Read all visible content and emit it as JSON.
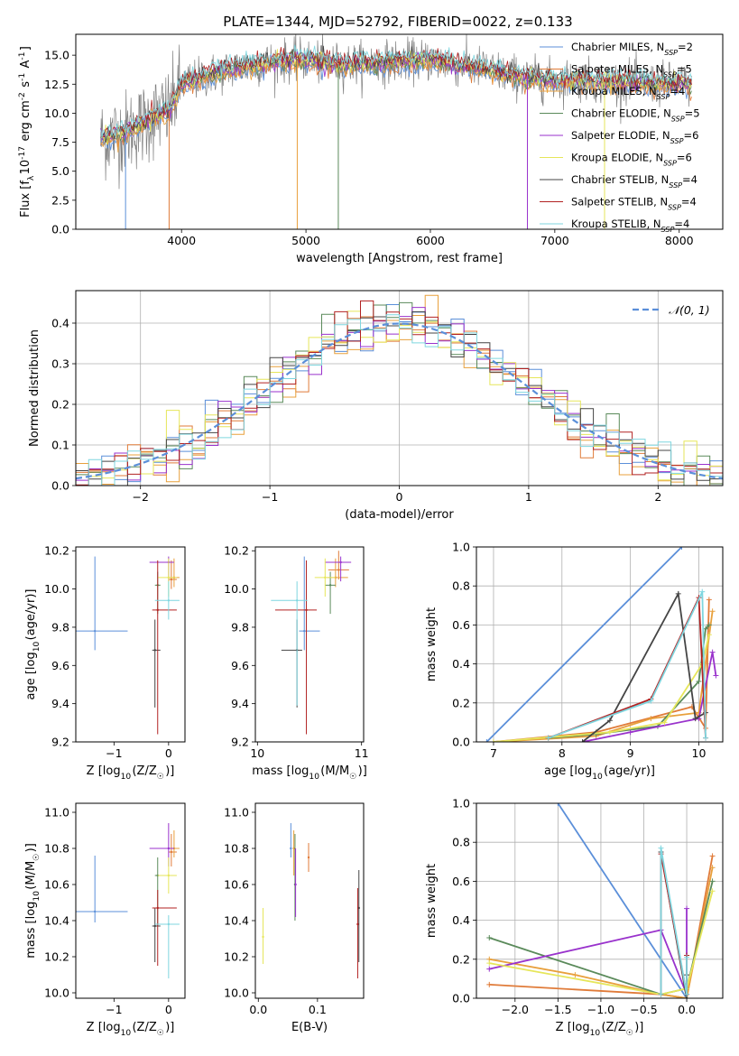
{
  "figure": {
    "title": "PLATE=1344, MJD=52792, FIBERID=0022, z=0.133"
  },
  "colors": {
    "Chabrier MILES": "#5b8fd9",
    "Salpeter MILES": "#e07b39",
    "Kroupa MILES": "#e8a03c",
    "Chabrier ELODIE": "#5a8a5a",
    "Salpeter ELODIE": "#9932cc",
    "Kroupa ELODIE": "#e6e65a",
    "Chabrier STELIB": "#444444",
    "Salpeter STELIB": "#b22222",
    "Kroupa STELIB": "#7fd6df"
  },
  "chart_data": [
    {
      "id": "spectrum",
      "type": "line",
      "title": "PLATE=1344, MJD=52792, FIBERID=0022, z=0.133",
      "xlabel": "wavelength [Angstrom, rest frame]",
      "ylabel": "Flux [f$_\\lambda$10$^{-17}$ erg cm$^{-2}$ s$^{-1}$ A$^{-1}$]",
      "xlim": [
        3150,
        8350
      ],
      "ylim": [
        0,
        16.8
      ],
      "xticks": [
        4000,
        5000,
        6000,
        7000,
        8000
      ],
      "yticks": [
        0.0,
        2.5,
        5.0,
        7.5,
        10.0,
        12.5,
        15.0
      ],
      "grid": false,
      "legend_position": "right",
      "legend": [
        {
          "label": "Chabrier MILES, N",
          "sub": "SSP",
          "tail": "=2"
        },
        {
          "label": "Salpeter MILES, N",
          "sub": "SSP",
          "tail": "=5"
        },
        {
          "label": "Kroupa MILES, N",
          "sub": "SSP",
          "tail": "=4"
        },
        {
          "label": "Chabrier ELODIE, N",
          "sub": "SSP",
          "tail": "=5"
        },
        {
          "label": "Salpeter ELODIE, N",
          "sub": "SSP",
          "tail": "=6"
        },
        {
          "label": "Kroupa ELODIE, N",
          "sub": "SSP",
          "tail": "=6"
        },
        {
          "label": "Chabrier STELIB, N",
          "sub": "SSP",
          "tail": "=4"
        },
        {
          "label": "Salpeter STELIB, N",
          "sub": "SSP",
          "tail": "=4"
        },
        {
          "label": "Kroupa STELIB, N",
          "sub": "SSP",
          "tail": "=4"
        }
      ],
      "continuum": {
        "wavelength": [
          3350,
          3500,
          3650,
          3800,
          3900,
          4000,
          4200,
          4400,
          4600,
          4800,
          5000,
          5200,
          5400,
          5600,
          5800,
          6000,
          6200,
          6400,
          6600,
          6800,
          7000,
          7200,
          7400,
          7600,
          7800,
          8000,
          8100
        ],
        "flux": [
          7.8,
          8.2,
          8.8,
          9.8,
          10.2,
          12.5,
          13.2,
          13.8,
          14.2,
          14.5,
          14.6,
          14.2,
          14.3,
          14.4,
          14.5,
          14.6,
          14.2,
          13.9,
          13.4,
          13.0,
          12.8,
          12.9,
          12.7,
          12.7,
          12.5,
          12.6,
          12.4
        ]
      },
      "dips": [
        {
          "x": 3550,
          "y": 0.0
        },
        {
          "x": 3900,
          "y": 0.0
        },
        {
          "x": 4930,
          "y": 0.0
        },
        {
          "x": 5260,
          "y": 0.0
        },
        {
          "x": 6780,
          "y": 0.0
        },
        {
          "x": 7400,
          "y": 0.0
        }
      ]
    },
    {
      "id": "residuals",
      "type": "line",
      "xlabel": "(data-model)/error",
      "ylabel": "Normed distribution",
      "xlim": [
        -2.5,
        2.5
      ],
      "ylim": [
        0,
        0.48
      ],
      "xticks": [
        -2,
        -1,
        0,
        1,
        2
      ],
      "yticks": [
        0.0,
        0.1,
        0.2,
        0.3,
        0.4
      ],
      "grid": true,
      "legend_position": "top-right",
      "legend": [
        {
          "label": "$\\mathcal{N}(0,1)$"
        }
      ],
      "bin_width": 0.1,
      "bin_start": -2.5
    },
    {
      "id": "age_vs_Z",
      "type": "scatter",
      "xlabel": "Z [log$_{10}$(Z/Z$_\\odot$)]",
      "ylabel": "age  [log$_{10}$(age/yr)]",
      "xlim": [
        -1.7,
        0.3
      ],
      "ylim": [
        9.2,
        10.22
      ],
      "xticks": [
        -1,
        0
      ],
      "yticks": [
        9.2,
        9.4,
        9.6,
        9.8,
        10.0,
        10.2
      ],
      "grid": false,
      "series": [
        {
          "x": -1.35,
          "y": 9.78,
          "xerr": [
            0.6,
            0.6
          ],
          "yerr": [
            0.1,
            0.39
          ]
        },
        {
          "x": 0.05,
          "y": 10.05,
          "xerr": [
            0.05,
            0.1
          ],
          "yerr": [
            0.05,
            0.1
          ]
        },
        {
          "x": 0.1,
          "y": 10.06,
          "xerr": [
            0.1,
            0.1
          ],
          "yerr": [
            0.05,
            0.1
          ]
        },
        {
          "x": -0.2,
          "y": 10.02,
          "xerr": [
            0.05,
            0.05
          ],
          "yerr": [
            0.15,
            0.07
          ]
        },
        {
          "x": 0.0,
          "y": 10.14,
          "xerr": [
            0.35,
            0.1
          ],
          "yerr": [
            0.1,
            0.03
          ]
        },
        {
          "x": 0.0,
          "y": 10.06,
          "xerr": [
            0.2,
            0.15
          ],
          "yerr": [
            0.1,
            0.1
          ]
        },
        {
          "x": -0.25,
          "y": 9.68,
          "xerr": [
            0.05,
            0.1
          ],
          "yerr": [
            0.3,
            0.16
          ]
        },
        {
          "x": -0.2,
          "y": 9.89,
          "xerr": [
            0.1,
            0.35
          ],
          "yerr": [
            0.65,
            0.26
          ]
        },
        {
          "x": 0.0,
          "y": 9.94,
          "xerr": [
            0.25,
            0.2
          ],
          "yerr": [
            0.1,
            0.1
          ]
        }
      ]
    },
    {
      "id": "age_vs_mass",
      "type": "scatter",
      "xlabel": "mass [log$_{10}$(M/M$_\\odot$)]",
      "ylabel": "",
      "xlim": [
        9.98,
        11.02
      ],
      "ylim": [
        9.2,
        10.22
      ],
      "xticks": [
        10,
        11
      ],
      "yticks": [
        9.2,
        9.4,
        9.6,
        9.8,
        10.0,
        10.2
      ],
      "grid": false,
      "series": [
        {
          "x": 10.45,
          "y": 9.78,
          "xerr": [
            0.05,
            0.15
          ],
          "yerr": [
            0.1,
            0.39
          ]
        },
        {
          "x": 10.78,
          "y": 10.1,
          "xerr": [
            0.1,
            0.1
          ],
          "yerr": [
            0.05,
            0.1
          ]
        },
        {
          "x": 10.75,
          "y": 10.06,
          "xerr": [
            0.08,
            0.12
          ],
          "yerr": [
            0.05,
            0.1
          ]
        },
        {
          "x": 10.7,
          "y": 10.02,
          "xerr": [
            0.05,
            0.05
          ],
          "yerr": [
            0.15,
            0.07
          ]
        },
        {
          "x": 10.8,
          "y": 10.14,
          "xerr": [
            0.15,
            0.1
          ],
          "yerr": [
            0.1,
            0.03
          ]
        },
        {
          "x": 10.65,
          "y": 10.06,
          "xerr": [
            0.1,
            0.1
          ],
          "yerr": [
            0.1,
            0.1
          ]
        },
        {
          "x": 10.38,
          "y": 9.68,
          "xerr": [
            0.15,
            0.05
          ],
          "yerr": [
            0.3,
            0.16
          ]
        },
        {
          "x": 10.47,
          "y": 9.89,
          "xerr": [
            0.3,
            0.1
          ],
          "yerr": [
            0.65,
            0.26
          ]
        },
        {
          "x": 10.38,
          "y": 9.94,
          "xerr": [
            0.25,
            0.1
          ],
          "yerr": [
            0.55,
            0.1
          ]
        }
      ]
    },
    {
      "id": "weight_vs_age",
      "type": "line",
      "xlabel": "age  [log$_{10}$(age/yr)]",
      "ylabel": "mass weight",
      "xlim": [
        6.75,
        10.35
      ],
      "ylim": [
        0,
        1.0
      ],
      "xticks": [
        7,
        8,
        9,
        10
      ],
      "yticks": [
        0.0,
        0.2,
        0.4,
        0.6,
        0.8,
        1.0
      ],
      "grid": true,
      "series": [
        {
          "name": "Chabrier MILES",
          "x": [
            6.9,
            9.75
          ],
          "y": [
            0.0,
            1.0
          ]
        },
        {
          "name": "Salpeter MILES",
          "x": [
            7.0,
            8.5,
            9.9,
            10.1,
            10.15
          ],
          "y": [
            0.0,
            0.05,
            0.18,
            0.07,
            0.73
          ]
        },
        {
          "name": "Kroupa MILES",
          "x": [
            7.0,
            8.5,
            9.3,
            10.0,
            10.2
          ],
          "y": [
            0.0,
            0.03,
            0.12,
            0.15,
            0.67
          ]
        },
        {
          "name": "Chabrier ELODIE",
          "x": [
            7.8,
            8.5,
            9.4,
            10.0,
            10.1,
            10.15
          ],
          "y": [
            0.02,
            0.04,
            0.08,
            0.31,
            0.58,
            0.6
          ]
        },
        {
          "name": "Salpeter ELODIE",
          "x": [
            8.3,
            9.0,
            10.0,
            10.2,
            10.25
          ],
          "y": [
            0.0,
            0.05,
            0.12,
            0.46,
            0.34
          ]
        },
        {
          "name": "Kroupa ELODIE",
          "x": [
            7.0,
            8.7,
            9.5,
            10.05,
            10.15
          ],
          "y": [
            0.0,
            0.05,
            0.1,
            0.4,
            0.55
          ]
        },
        {
          "name": "Chabrier STELIB",
          "x": [
            8.3,
            8.7,
            9.7,
            9.95,
            10.1
          ],
          "y": [
            0.0,
            0.11,
            0.76,
            0.12,
            0.15
          ]
        },
        {
          "name": "Salpeter STELIB",
          "x": [
            7.8,
            9.3,
            10.0,
            10.1
          ],
          "y": [
            0.02,
            0.22,
            0.74,
            0.02
          ]
        },
        {
          "name": "Kroupa STELIB",
          "x": [
            7.8,
            9.3,
            10.05,
            10.1
          ],
          "y": [
            0.02,
            0.21,
            0.77,
            0.02
          ]
        }
      ]
    },
    {
      "id": "mass_vs_Z",
      "type": "scatter",
      "xlabel": "Z [log$_{10}$(Z/Z$_\\odot$)]",
      "ylabel": "mass [log$_{10}$(M/M$_\\odot$)]",
      "xlim": [
        -1.7,
        0.3
      ],
      "ylim": [
        9.97,
        11.05
      ],
      "xticks": [
        -1,
        0
      ],
      "yticks": [
        10.0,
        10.2,
        10.4,
        10.6,
        10.8,
        11.0
      ],
      "grid": false,
      "series": [
        {
          "x": -1.35,
          "y": 10.45,
          "xerr": [
            0.6,
            0.6
          ],
          "yerr": [
            0.06,
            0.31
          ]
        },
        {
          "x": 0.05,
          "y": 10.78,
          "xerr": [
            0.05,
            0.1
          ],
          "yerr": [
            0.08,
            0.1
          ]
        },
        {
          "x": 0.1,
          "y": 10.8,
          "xerr": [
            0.1,
            0.1
          ],
          "yerr": [
            0.05,
            0.1
          ]
        },
        {
          "x": -0.2,
          "y": 10.65,
          "xerr": [
            0.05,
            0.05
          ],
          "yerr": [
            0.28,
            0.1
          ]
        },
        {
          "x": 0.0,
          "y": 10.8,
          "xerr": [
            0.35,
            0.1
          ],
          "yerr": [
            0.1,
            0.14
          ]
        },
        {
          "x": 0.0,
          "y": 10.65,
          "xerr": [
            0.2,
            0.15
          ],
          "yerr": [
            0.1,
            0.1
          ]
        },
        {
          "x": -0.25,
          "y": 10.37,
          "xerr": [
            0.05,
            0.1
          ],
          "yerr": [
            0.2,
            0.1
          ]
        },
        {
          "x": -0.2,
          "y": 10.47,
          "xerr": [
            0.1,
            0.35
          ],
          "yerr": [
            0.32,
            0.1
          ]
        },
        {
          "x": 0.0,
          "y": 10.38,
          "xerr": [
            0.25,
            0.2
          ],
          "yerr": [
            0.3,
            0.05
          ]
        }
      ]
    },
    {
      "id": "mass_vs_ebv",
      "type": "scatter",
      "xlabel": "E(B-V)",
      "ylabel": "",
      "xlim": [
        -0.005,
        0.178
      ],
      "ylim": [
        9.97,
        11.05
      ],
      "xticks": [
        0.0,
        0.1
      ],
      "yticks": [
        10.0,
        10.2,
        10.4,
        10.6,
        10.8,
        11.0
      ],
      "grid": false,
      "series": [
        {
          "x": 0.055,
          "y": 10.8,
          "yerr": [
            0.05,
            0.14
          ]
        },
        {
          "x": 0.085,
          "y": 10.75,
          "yerr": [
            0.08,
            0.08
          ]
        },
        {
          "x": 0.06,
          "y": 10.8,
          "yerr": [
            0.15,
            0.1
          ]
        },
        {
          "x": 0.062,
          "y": 10.6,
          "yerr": [
            0.2,
            0.28
          ]
        },
        {
          "x": 0.063,
          "y": 10.6,
          "yerr": [
            0.18,
            0.2
          ]
        },
        {
          "x": 0.008,
          "y": 10.31,
          "yerr": [
            0.15,
            0.16
          ]
        },
        {
          "x": 0.17,
          "y": 10.47,
          "yerr": [
            0.3,
            0.21
          ]
        },
        {
          "x": 0.168,
          "y": 10.38,
          "yerr": [
            0.3,
            0.2
          ]
        }
      ]
    },
    {
      "id": "weight_vs_Z",
      "type": "line",
      "xlabel": "Z [log$_{10}$(Z/Z$_\\odot$)]",
      "ylabel": "mass weight",
      "xlim": [
        -2.45,
        0.42
      ],
      "ylim": [
        0,
        1.0
      ],
      "xticks": [
        -2.0,
        -1.5,
        -1.0,
        -0.5,
        0.0
      ],
      "yticks": [
        0.0,
        0.2,
        0.4,
        0.6,
        0.8,
        1.0
      ],
      "grid": true,
      "series": [
        {
          "name": "Chabrier MILES",
          "x": [
            -1.5,
            0.0
          ],
          "y": [
            1.0,
            0.0
          ]
        },
        {
          "name": "Salpeter MILES",
          "x": [
            -2.3,
            -0.3,
            0.0,
            0.3
          ],
          "y": [
            0.07,
            0.02,
            0.0,
            0.73
          ]
        },
        {
          "name": "Kroupa MILES",
          "x": [
            -2.3,
            -1.3,
            -0.3,
            0.0,
            0.3
          ],
          "y": [
            0.2,
            0.12,
            0.02,
            0.0,
            0.67
          ]
        },
        {
          "name": "Chabrier ELODIE",
          "x": [
            -2.3,
            -0.3,
            0.0,
            0.3
          ],
          "y": [
            0.31,
            0.02,
            0.05,
            0.6
          ]
        },
        {
          "name": "Salpeter ELODIE",
          "x": [
            -2.3,
            -0.3,
            0.0,
            0.0
          ],
          "y": [
            0.15,
            0.35,
            0.02,
            0.46
          ]
        },
        {
          "name": "Kroupa ELODIE",
          "x": [
            -2.3,
            -0.3,
            0.0,
            0.3
          ],
          "y": [
            0.18,
            0.02,
            0.05,
            0.55
          ]
        },
        {
          "name": "Chabrier STELIB",
          "x": [
            -0.3,
            -0.3,
            0.0,
            0.0
          ],
          "y": [
            0.02,
            0.75,
            0.0,
            0.12
          ]
        },
        {
          "name": "Salpeter STELIB",
          "x": [
            -0.3,
            -0.3,
            0.0,
            0.0
          ],
          "y": [
            0.02,
            0.74,
            0.02,
            0.22
          ]
        },
        {
          "name": "Kroupa STELIB",
          "x": [
            -0.3,
            -0.3,
            0.0,
            0.0
          ],
          "y": [
            0.02,
            0.77,
            0.02,
            0.21
          ]
        }
      ]
    }
  ]
}
